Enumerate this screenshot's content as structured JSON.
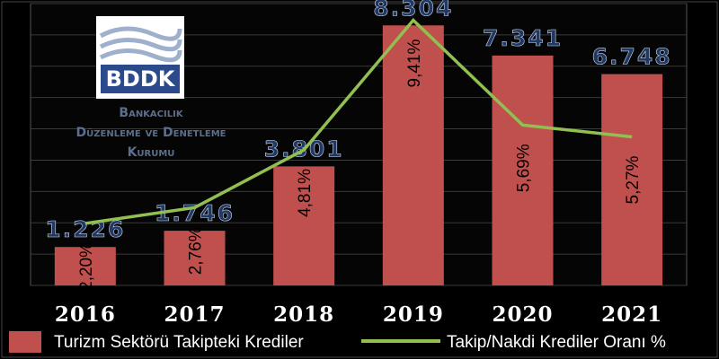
{
  "chart_data": {
    "type": "combo",
    "logo": {
      "abbr": "BDDK",
      "lines": [
        "Bankacılık",
        "Düzenleme ve Denetleme",
        "Kurumu"
      ]
    },
    "categories": [
      "2016",
      "2017",
      "2018",
      "2019",
      "2020",
      "2021"
    ],
    "series": [
      {
        "name": "Turizm Sektörü Takipteki Krediler",
        "type": "bar",
        "color": "#c0504d",
        "values": [
          1226,
          1746,
          3801,
          8304,
          7341,
          6748
        ],
        "value_labels": [
          "1.226",
          "1.746",
          "3.801",
          "8.304",
          "7.341",
          "6.748"
        ]
      },
      {
        "name": "Takip/Nakdi Krediler Oranı %",
        "type": "line",
        "axis": "y2",
        "color": "#92c050",
        "values": [
          2.2,
          2.76,
          4.81,
          9.41,
          5.69,
          5.27
        ],
        "value_labels": [
          "2,20%",
          "2,76%",
          "4,81%",
          "9,41%",
          "5,69%",
          "5,27%"
        ]
      }
    ],
    "ylim": [
      0,
      9000
    ],
    "yticks": [
      0,
      1000,
      2000,
      3000,
      4000,
      5000,
      6000,
      7000,
      8000,
      9000
    ],
    "y2lim": [
      0,
      10
    ],
    "grid": true,
    "legend": "bottom"
  }
}
